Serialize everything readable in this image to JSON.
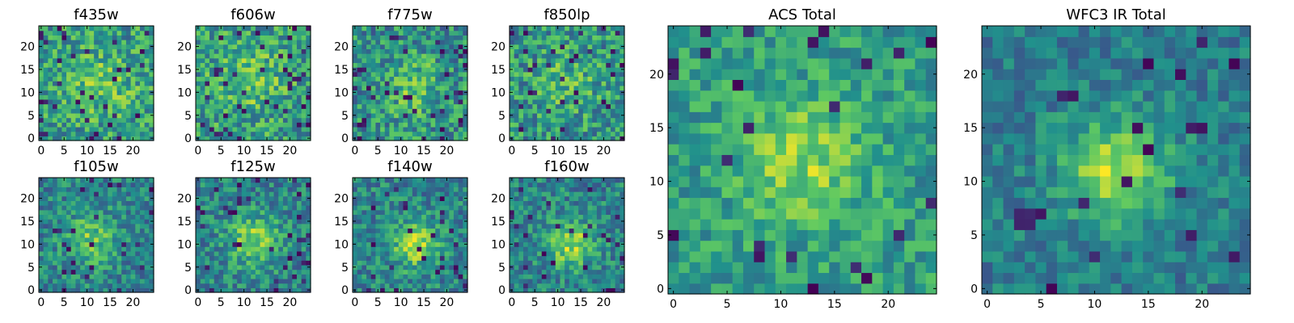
{
  "figure": {
    "background": "#ffffff",
    "colormap": "viridis",
    "colormap_stops": [
      "#440154",
      "#3b528b",
      "#21918c",
      "#5ec962",
      "#fde725"
    ]
  },
  "chart_data": [
    {
      "type": "heatmap",
      "title": "f435w",
      "xlim": [
        0,
        24
      ],
      "ylim": [
        0,
        24
      ],
      "xticks": [
        0,
        5,
        10,
        15,
        20
      ],
      "yticks": [
        0,
        5,
        10,
        15,
        20
      ],
      "grid": false,
      "pattern": {
        "seed": 11,
        "center": [
          13,
          12
        ],
        "sigma": 5.0,
        "amp": 0.18,
        "base": 0.55,
        "noise": 0.5,
        "lowProb": 0.05
      }
    },
    {
      "type": "heatmap",
      "title": "f606w",
      "xlim": [
        0,
        24
      ],
      "ylim": [
        0,
        24
      ],
      "xticks": [
        0,
        5,
        10,
        15,
        20
      ],
      "yticks": [
        0,
        5,
        10,
        15,
        20
      ],
      "grid": false,
      "pattern": {
        "seed": 23,
        "center": [
          11,
          13
        ],
        "sigma": 5.0,
        "amp": 0.2,
        "base": 0.55,
        "noise": 0.5,
        "lowProb": 0.06
      }
    },
    {
      "type": "heatmap",
      "title": "f775w",
      "xlim": [
        0,
        24
      ],
      "ylim": [
        0,
        24
      ],
      "xticks": [
        0,
        5,
        10,
        15,
        20
      ],
      "yticks": [
        0,
        5,
        10,
        15,
        20
      ],
      "grid": false,
      "pattern": {
        "seed": 37,
        "center": [
          13,
          11
        ],
        "sigma": 4.5,
        "amp": 0.2,
        "base": 0.5,
        "noise": 0.5,
        "lowProb": 0.06
      }
    },
    {
      "type": "heatmap",
      "title": "f850lp",
      "xlim": [
        0,
        24
      ],
      "ylim": [
        0,
        24
      ],
      "xticks": [
        0,
        5,
        10,
        15,
        20
      ],
      "yticks": [
        0,
        5,
        10,
        15,
        20
      ],
      "grid": false,
      "pattern": {
        "seed": 41,
        "center": [
          12,
          12
        ],
        "sigma": 5.0,
        "amp": 0.15,
        "base": 0.52,
        "noise": 0.5,
        "lowProb": 0.07
      }
    },
    {
      "type": "heatmap",
      "title": "f105w",
      "xlim": [
        0,
        24
      ],
      "ylim": [
        0,
        24
      ],
      "xticks": [
        0,
        5,
        10,
        15,
        20
      ],
      "yticks": [
        0,
        5,
        10,
        15,
        20
      ],
      "grid": false,
      "pattern": {
        "seed": 53,
        "center": [
          11,
          11
        ],
        "sigma": 4.0,
        "amp": 0.3,
        "base": 0.45,
        "noise": 0.4,
        "lowProb": 0.05
      }
    },
    {
      "type": "heatmap",
      "title": "f125w",
      "xlim": [
        0,
        24
      ],
      "ylim": [
        0,
        24
      ],
      "xticks": [
        0,
        5,
        10,
        15,
        20
      ],
      "yticks": [
        0,
        5,
        10,
        15,
        20
      ],
      "grid": false,
      "pattern": {
        "seed": 67,
        "center": [
          12,
          11
        ],
        "sigma": 4.0,
        "amp": 0.35,
        "base": 0.45,
        "noise": 0.4,
        "lowProb": 0.05
      }
    },
    {
      "type": "heatmap",
      "title": "f140w",
      "xlim": [
        0,
        24
      ],
      "ylim": [
        0,
        24
      ],
      "xticks": [
        0,
        5,
        10,
        15,
        20
      ],
      "yticks": [
        0,
        5,
        10,
        15,
        20
      ],
      "grid": false,
      "pattern": {
        "seed": 79,
        "center": [
          13,
          10
        ],
        "sigma": 3.5,
        "amp": 0.4,
        "base": 0.45,
        "noise": 0.4,
        "lowProb": 0.05
      }
    },
    {
      "type": "heatmap",
      "title": "f160w",
      "xlim": [
        0,
        24
      ],
      "ylim": [
        0,
        24
      ],
      "xticks": [
        0,
        5,
        10,
        15,
        20
      ],
      "yticks": [
        0,
        5,
        10,
        15,
        20
      ],
      "grid": false,
      "pattern": {
        "seed": 83,
        "center": [
          13,
          10
        ],
        "sigma": 3.5,
        "amp": 0.4,
        "base": 0.45,
        "noise": 0.4,
        "lowProb": 0.05
      }
    },
    {
      "type": "heatmap",
      "title": "ACS Total",
      "xlim": [
        0,
        24
      ],
      "ylim": [
        0,
        24
      ],
      "xticks": [
        0,
        5,
        10,
        15,
        20
      ],
      "yticks": [
        0,
        5,
        10,
        15,
        20
      ],
      "grid": false,
      "pattern": {
        "seed": 97,
        "center": [
          12,
          12
        ],
        "sigma": 4.0,
        "amp": 0.28,
        "base": 0.55,
        "noise": 0.35,
        "lowProb": 0.04
      }
    },
    {
      "type": "heatmap",
      "title": "WFC3 IR Total",
      "xlim": [
        0,
        24
      ],
      "ylim": [
        0,
        24
      ],
      "xticks": [
        0,
        5,
        10,
        15,
        20
      ],
      "yticks": [
        0,
        5,
        10,
        15,
        20
      ],
      "grid": false,
      "pattern": {
        "seed": 101,
        "center": [
          12,
          11
        ],
        "sigma": 3.5,
        "amp": 0.45,
        "base": 0.42,
        "noise": 0.3,
        "lowProb": 0.04
      }
    }
  ]
}
